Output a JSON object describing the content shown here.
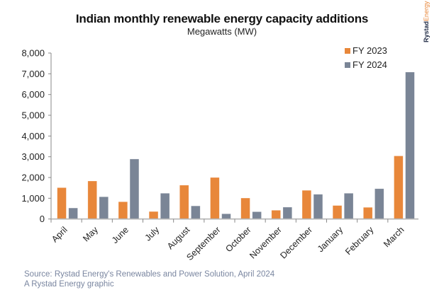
{
  "chart_data": {
    "type": "bar",
    "title": "Indian monthly renewable energy capacity additions",
    "subtitle": "Megawatts (MW)",
    "xlabel": "",
    "ylabel": "",
    "ylim": [
      0,
      8000
    ],
    "yticks": [
      0,
      1000,
      2000,
      3000,
      4000,
      5000,
      6000,
      7000,
      8000
    ],
    "ytick_labels": [
      "0",
      "1,000",
      "2,000",
      "3,000",
      "4,000",
      "5,000",
      "6,000",
      "7,000",
      "8,000"
    ],
    "grid": false,
    "legend_position": "top-right",
    "categories": [
      "April",
      "May",
      "June",
      "July",
      "August",
      "September",
      "October",
      "November",
      "December",
      "January",
      "February",
      "March"
    ],
    "series": [
      {
        "name": "FY 2023",
        "color": "#e8873a",
        "values": [
          1510,
          1830,
          830,
          360,
          1630,
          2000,
          1010,
          420,
          1380,
          650,
          560,
          3040
        ]
      },
      {
        "name": "FY 2024",
        "color": "#7a8596",
        "values": [
          530,
          1070,
          2890,
          1240,
          630,
          250,
          350,
          570,
          1190,
          1240,
          1460,
          7080
        ]
      }
    ]
  },
  "brand": {
    "part1": "Rystad",
    "part2": "Energy"
  },
  "footer": {
    "source": "Source: Rystad Energy's Renewables and Power Solution, April 2024",
    "credit": "A Rystad Energy graphic"
  }
}
